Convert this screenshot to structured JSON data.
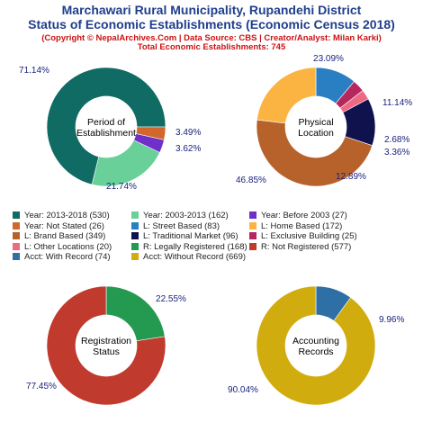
{
  "header": {
    "title_line1": "Marchawari Rural Municipality, Rupandehi District",
    "title_line2": "Status of Economic Establishments (Economic Census 2018)",
    "copyright": "(Copyright © NepalArchives.Com | Data Source: CBS | Creator/Analyst: Milan Karki)",
    "total": "Total Economic Establishments: 745"
  },
  "chart_data": [
    {
      "type": "pie",
      "title": "Period of Establishment",
      "center_lines": [
        "Period of",
        "Establishment"
      ],
      "slices": [
        {
          "label": "Year: 2013-2018",
          "value": 530,
          "percent": "71.14%",
          "color": "#0f6b63"
        },
        {
          "label": "Year: 2003-2013",
          "value": 162,
          "percent": "21.74%",
          "color": "#68d098"
        },
        {
          "label": "Year: Before 2003",
          "value": 27,
          "percent": "3.62%",
          "color": "#7030c8"
        },
        {
          "label": "Year: Not Stated",
          "value": 26,
          "percent": "3.49%",
          "color": "#d2672c"
        }
      ]
    },
    {
      "type": "pie",
      "title": "Physical Location",
      "center_lines": [
        "Physical",
        "Location"
      ],
      "slices": [
        {
          "label": "L: Street Based",
          "value": 83,
          "percent": "11.14%",
          "color": "#2a7fc3"
        },
        {
          "label": "L: Exclusive Building",
          "value": 25,
          "percent": "3.36%",
          "color": "#b5285e"
        },
        {
          "label": "L: Other Locations",
          "value": 20,
          "percent": "2.68%",
          "color": "#ee6a84"
        },
        {
          "label": "L: Traditional Market",
          "value": 96,
          "percent": "12.89%",
          "color": "#10124e"
        },
        {
          "label": "L: Brand Based",
          "value": 349,
          "percent": "46.85%",
          "color": "#b8622b"
        },
        {
          "label": "L: Home Based",
          "value": 172,
          "percent": "23.09%",
          "color": "#fbb341"
        }
      ]
    },
    {
      "type": "pie",
      "title": "Registration Status",
      "center_lines": [
        "Registration",
        "Status"
      ],
      "slices": [
        {
          "label": "R: Legally Registered",
          "value": 168,
          "percent": "22.55%",
          "color": "#239a50"
        },
        {
          "label": "R: Not Registered",
          "value": 577,
          "percent": "77.45%",
          "color": "#c03a2d"
        }
      ]
    },
    {
      "type": "pie",
      "title": "Accounting Records",
      "center_lines": [
        "Accounting",
        "Records"
      ],
      "slices": [
        {
          "label": "Acct: With Record",
          "value": 74,
          "percent": "9.96%",
          "color": "#2e6fa6"
        },
        {
          "label": "Acct: Without Record",
          "value": 669,
          "percent": "90.04%",
          "color": "#d1ac0e"
        }
      ]
    }
  ],
  "legend": [
    {
      "text": "Year: 2013-2018 (530)",
      "color": "#0f6b63"
    },
    {
      "text": "Year: 2003-2013 (162)",
      "color": "#68d098"
    },
    {
      "text": "Year: Before 2003 (27)",
      "color": "#7030c8"
    },
    {
      "text": "Year: Not Stated (26)",
      "color": "#d2672c"
    },
    {
      "text": "L: Street Based (83)",
      "color": "#2a7fc3"
    },
    {
      "text": "L: Home Based (172)",
      "color": "#fbb341"
    },
    {
      "text": "L: Brand Based (349)",
      "color": "#b8622b"
    },
    {
      "text": "L: Traditional Market (96)",
      "color": "#10124e"
    },
    {
      "text": "L: Exclusive Building (25)",
      "color": "#b5285e"
    },
    {
      "text": "L: Other Locations (20)",
      "color": "#ee6a84"
    },
    {
      "text": "R: Legally Registered (168)",
      "color": "#239a50"
    },
    {
      "text": "R: Not Registered (577)",
      "color": "#c03a2d"
    },
    {
      "text": "Acct: With Record (74)",
      "color": "#2e6fa6"
    },
    {
      "text": "Acct: Without Record (669)",
      "color": "#d1ac0e"
    }
  ]
}
